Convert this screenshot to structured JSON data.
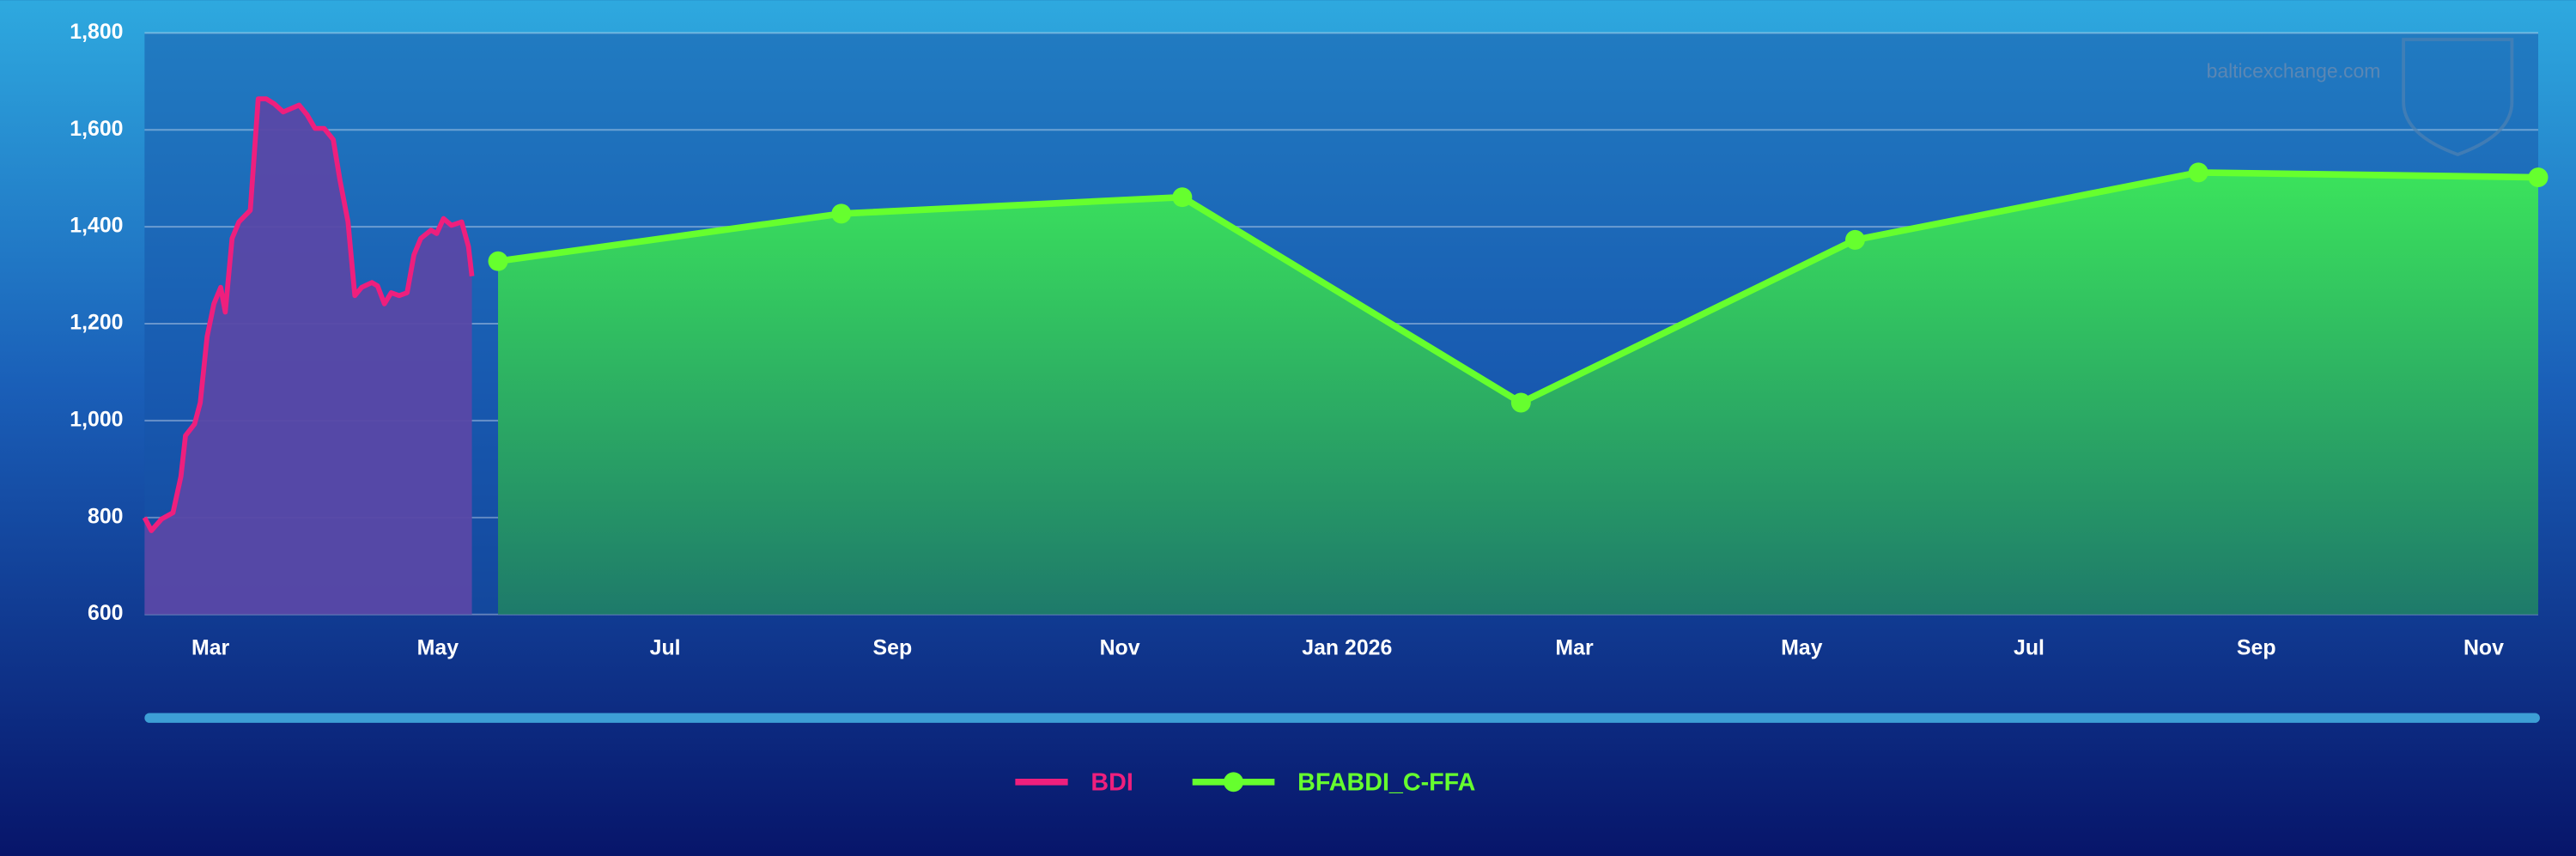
{
  "chart_data": {
    "type": "area-line",
    "watermark": "balticexchange.com",
    "xlim": [
      1.42,
      22.48
    ],
    "xticks": [
      {
        "value": 2,
        "label": "Mar"
      },
      {
        "value": 4,
        "label": "May"
      },
      {
        "value": 6,
        "label": "Jul"
      },
      {
        "value": 8,
        "label": "Sep"
      },
      {
        "value": 10,
        "label": "Nov"
      },
      {
        "value": 12,
        "label": "Jan 2026"
      },
      {
        "value": 14,
        "label": "Mar"
      },
      {
        "value": 16,
        "label": "May"
      },
      {
        "value": 18,
        "label": "Jul"
      },
      {
        "value": 20,
        "label": "Sep"
      },
      {
        "value": 22,
        "label": "Nov"
      }
    ],
    "ylim": [
      600,
      1800
    ],
    "yticks": [
      600,
      800,
      {
        "value": 1000,
        "label": "1,000"
      },
      {
        "value": 1200,
        "label": "1,200"
      },
      {
        "value": 1400,
        "label": "1,400"
      },
      {
        "value": 1600,
        "label": "1,600"
      },
      {
        "value": 1800,
        "label": "1,800"
      }
    ],
    "grid": true,
    "legend": "bottom",
    "series": [
      {
        "name": "BDI",
        "color": "#ee1f7d",
        "area_color": "#5848a6",
        "markers": false,
        "x": [
          1.42,
          1.48,
          1.57,
          1.67,
          1.74,
          1.78,
          1.86,
          1.91,
          1.97,
          2.03,
          2.09,
          2.13,
          2.19,
          2.25,
          2.35,
          2.42,
          2.49,
          2.56,
          2.64,
          2.71,
          2.78,
          2.85,
          2.92,
          3.0,
          3.08,
          3.14,
          3.21,
          3.27,
          3.33,
          3.42,
          3.47,
          3.53,
          3.59,
          3.66,
          3.73,
          3.79,
          3.85,
          3.94,
          3.99,
          4.05,
          4.12,
          4.21,
          4.27,
          4.3
        ],
        "values": [
          800,
          773,
          797,
          810,
          885,
          969,
          993,
          1037,
          1173,
          1241,
          1275,
          1224,
          1376,
          1410,
          1434,
          1664,
          1664,
          1654,
          1637,
          1644,
          1651,
          1631,
          1603,
          1603,
          1580,
          1495,
          1410,
          1258,
          1275,
          1285,
          1278,
          1241,
          1264,
          1258,
          1264,
          1342,
          1376,
          1393,
          1386,
          1417,
          1403,
          1410,
          1359,
          1298
        ]
      },
      {
        "name": "BFABDI_C-FFA",
        "color": "#66ff2e",
        "area_color": "#2fd866",
        "markers": true,
        "x": [
          4.53,
          7.55,
          10.55,
          13.53,
          16.47,
          19.49,
          22.48
        ],
        "values": [
          1329,
          1427,
          1461,
          1037,
          1373,
          1512,
          1502
        ]
      }
    ]
  }
}
